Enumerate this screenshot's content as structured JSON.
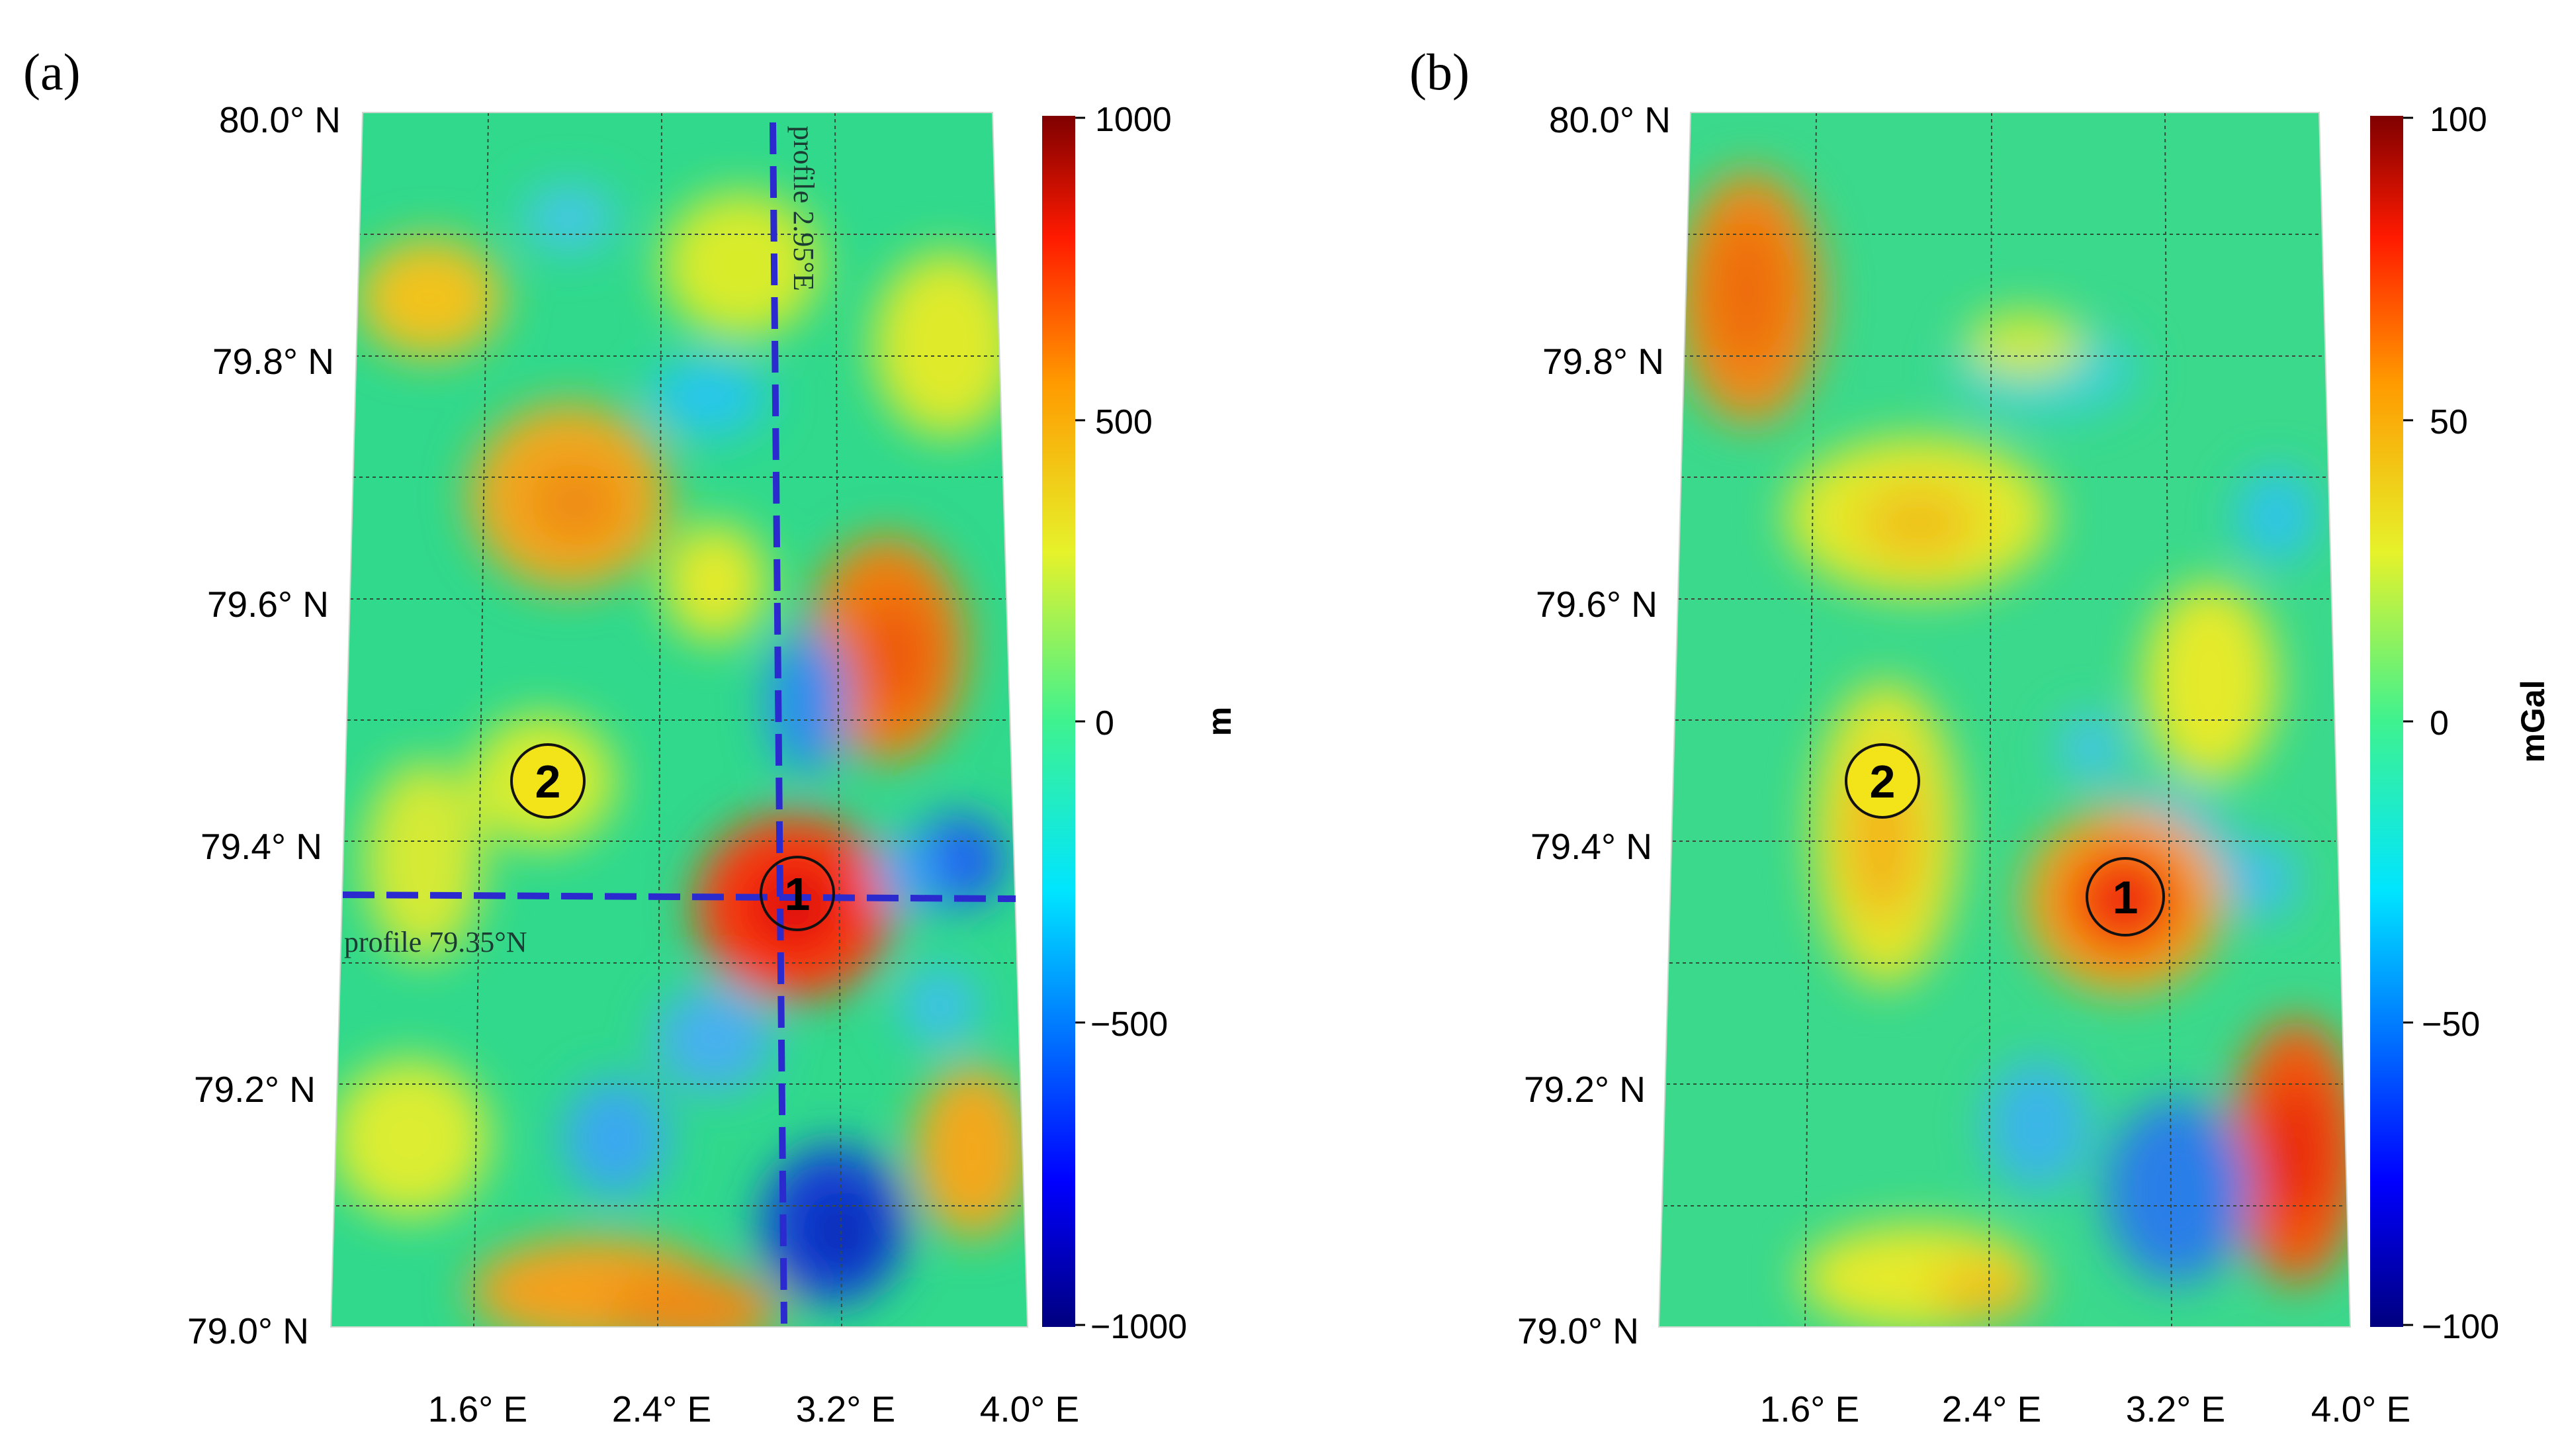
{
  "figure": {
    "panel_a": {
      "label": "(a)",
      "lat_labels": [
        "80.0° N",
        "79.8° N",
        "79.6° N",
        "79.4° N",
        "79.2° N",
        "79.0° N"
      ],
      "lon_labels": [
        "1.6° E",
        "2.4° E",
        "3.2° E",
        "4.0° E"
      ],
      "colorbar": {
        "ticks": [
          "1000",
          "500",
          "0",
          "−500",
          "−1000"
        ],
        "unit": "m",
        "min": -1000,
        "max": 1000
      },
      "profile_ns": "profile 2.95°E",
      "profile_ew": "profile 79.35°N",
      "marker_1": "1",
      "marker_2": "2"
    },
    "panel_b": {
      "label": "(b)",
      "lat_labels": [
        "80.0° N",
        "79.8° N",
        "79.6° N",
        "79.4° N",
        "79.2° N",
        "79.0° N"
      ],
      "lon_labels": [
        "1.6° E",
        "2.4° E",
        "3.2° E",
        "4.0° E"
      ],
      "colorbar": {
        "ticks": [
          "100",
          "50",
          "0",
          "−50",
          "−100"
        ],
        "unit": "mGal",
        "min": -100,
        "max": 100
      },
      "marker_1": "1",
      "marker_2": "2"
    },
    "colors": {
      "background": "#2fd98a",
      "profile_line": "#2a2acf",
      "grid": "#3a4a3a"
    }
  }
}
